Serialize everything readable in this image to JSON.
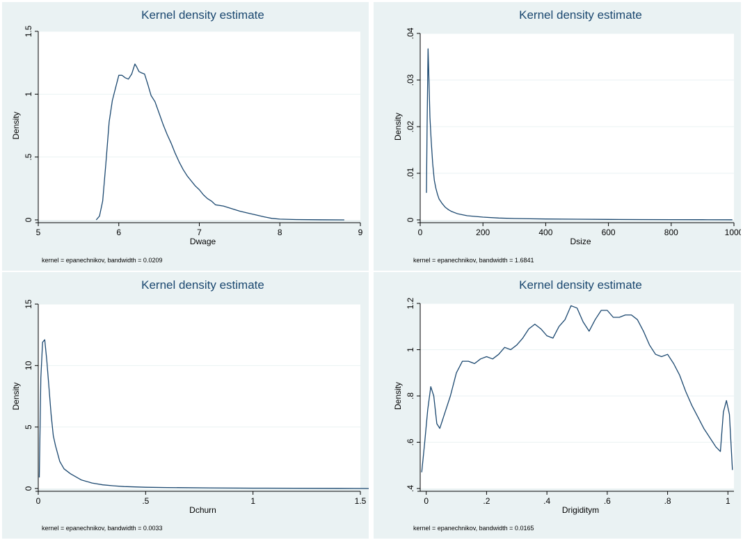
{
  "colors": {
    "panel_bg": "#eaf2f3",
    "plot_bg": "#ffffff",
    "line": "#1a476f",
    "title": "#1a476f",
    "grid": "#eaf2f3"
  },
  "chart_data": [
    {
      "type": "line",
      "title": "Kernel density estimate",
      "xlabel": "Dwage",
      "ylabel": "Density",
      "note": "kernel = epanechnikov, bandwidth = 0.0209",
      "xlim": [
        5,
        9
      ],
      "ylim": [
        0,
        1.5
      ],
      "xticks": [
        5,
        6,
        7,
        8,
        9
      ],
      "xtick_labels": [
        "5",
        "6",
        "7",
        "8",
        "9"
      ],
      "yticks": [
        0,
        0.5,
        1,
        1.5
      ],
      "ytick_labels": [
        "0",
        ".5",
        "1",
        "1.5"
      ],
      "grid": true,
      "x": [
        5.72,
        5.76,
        5.8,
        5.84,
        5.88,
        5.92,
        5.96,
        6.0,
        6.04,
        6.08,
        6.12,
        6.16,
        6.2,
        6.22,
        6.25,
        6.28,
        6.32,
        6.36,
        6.4,
        6.45,
        6.5,
        6.55,
        6.6,
        6.65,
        6.7,
        6.75,
        6.8,
        6.85,
        6.9,
        6.95,
        7.0,
        7.05,
        7.1,
        7.15,
        7.2,
        7.3,
        7.4,
        7.5,
        7.6,
        7.7,
        7.8,
        7.9,
        8.0,
        8.2,
        8.5,
        8.8
      ],
      "y": [
        0.0,
        0.03,
        0.15,
        0.45,
        0.78,
        0.95,
        1.05,
        1.15,
        1.15,
        1.13,
        1.12,
        1.16,
        1.24,
        1.22,
        1.18,
        1.17,
        1.16,
        1.08,
        0.99,
        0.94,
        0.85,
        0.76,
        0.68,
        0.61,
        0.53,
        0.46,
        0.4,
        0.35,
        0.31,
        0.27,
        0.24,
        0.2,
        0.17,
        0.15,
        0.12,
        0.11,
        0.09,
        0.07,
        0.055,
        0.04,
        0.025,
        0.012,
        0.006,
        0.003,
        0.001,
        0.0
      ]
    },
    {
      "type": "line",
      "title": "Kernel density estimate",
      "xlabel": "Dsize",
      "ylabel": "Density",
      "note": "kernel = epanechnikov, bandwidth = 1.6841",
      "xlim": [
        0,
        1000
      ],
      "ylim": [
        0,
        0.04
      ],
      "xticks": [
        0,
        200,
        400,
        600,
        800,
        1000
      ],
      "xtick_labels": [
        "0",
        "200",
        "400",
        "600",
        "800",
        "1000"
      ],
      "yticks": [
        0,
        0.01,
        0.02,
        0.03,
        0.04
      ],
      "ytick_labels": [
        "0",
        ".01",
        ".02",
        ".03",
        ".04"
      ],
      "grid": true,
      "x": [
        20,
        22,
        25,
        28,
        31,
        35,
        40,
        45,
        50,
        55,
        60,
        70,
        80,
        90,
        100,
        120,
        150,
        200,
        250,
        300,
        400,
        500,
        600,
        700,
        800,
        900,
        995
      ],
      "y": [
        0.0058,
        0.02,
        0.0367,
        0.03,
        0.022,
        0.017,
        0.012,
        0.0085,
        0.0068,
        0.0055,
        0.0045,
        0.0035,
        0.0027,
        0.0022,
        0.0018,
        0.0013,
        0.0009,
        0.0006,
        0.0004,
        0.0003,
        0.0002,
        0.00015,
        0.0001,
        8e-05,
        6e-05,
        4e-05,
        3e-05
      ]
    },
    {
      "type": "line",
      "title": "Kernel density estimate",
      "xlabel": "Dchurn",
      "ylabel": "Density",
      "note": "kernel = epanechnikov, bandwidth = 0.0033",
      "xlim": [
        0,
        1.5
      ],
      "ylim": [
        0,
        15
      ],
      "xticks": [
        0,
        0.5,
        1,
        1.5
      ],
      "xtick_labels": [
        "0",
        ".5",
        "1",
        "1.5"
      ],
      "yticks": [
        0,
        5,
        10,
        15
      ],
      "ytick_labels": [
        "0",
        "5",
        "10",
        "15"
      ],
      "grid": true,
      "x": [
        0.005,
        0.012,
        0.02,
        0.03,
        0.04,
        0.05,
        0.06,
        0.07,
        0.08,
        0.1,
        0.12,
        0.15,
        0.2,
        0.25,
        0.3,
        0.35,
        0.4,
        0.5,
        0.6,
        0.8,
        1.0,
        1.2,
        1.4,
        1.55
      ],
      "y": [
        0.9,
        9.0,
        11.9,
        12.1,
        10.4,
        8.2,
        6.0,
        4.3,
        3.5,
        2.2,
        1.6,
        1.2,
        0.7,
        0.45,
        0.3,
        0.22,
        0.16,
        0.1,
        0.08,
        0.05,
        0.03,
        0.02,
        0.01,
        0.0
      ]
    },
    {
      "type": "line",
      "title": "Kernel density estimate",
      "xlabel": "Drigiditym",
      "ylabel": "Density",
      "note": "kernel = epanechnikov, bandwidth = 0.0165",
      "xlim": [
        -0.02,
        1.02
      ],
      "ylim": [
        0.4,
        1.2
      ],
      "xticks": [
        0,
        0.2,
        0.4,
        0.6,
        0.8,
        1
      ],
      "xtick_labels": [
        "0",
        ".2",
        ".4",
        ".6",
        ".8",
        "1"
      ],
      "yticks": [
        0.4,
        0.6,
        0.8,
        1,
        1.2
      ],
      "ytick_labels": [
        ".4",
        ".6",
        ".8",
        "1",
        "1.2"
      ],
      "grid": true,
      "x": [
        -0.015,
        -0.005,
        0.005,
        0.015,
        0.025,
        0.035,
        0.045,
        0.06,
        0.08,
        0.1,
        0.12,
        0.14,
        0.16,
        0.18,
        0.2,
        0.22,
        0.24,
        0.26,
        0.28,
        0.3,
        0.32,
        0.34,
        0.36,
        0.38,
        0.4,
        0.42,
        0.44,
        0.46,
        0.48,
        0.5,
        0.52,
        0.54,
        0.56,
        0.58,
        0.6,
        0.62,
        0.64,
        0.66,
        0.68,
        0.7,
        0.72,
        0.74,
        0.76,
        0.78,
        0.8,
        0.82,
        0.84,
        0.86,
        0.88,
        0.9,
        0.92,
        0.94,
        0.96,
        0.975,
        0.985,
        0.995,
        1.005,
        1.015
      ],
      "y": [
        0.47,
        0.6,
        0.74,
        0.84,
        0.8,
        0.68,
        0.66,
        0.72,
        0.8,
        0.9,
        0.95,
        0.95,
        0.94,
        0.96,
        0.97,
        0.96,
        0.98,
        1.01,
        1.0,
        1.02,
        1.05,
        1.09,
        1.11,
        1.09,
        1.06,
        1.05,
        1.1,
        1.13,
        1.19,
        1.18,
        1.12,
        1.08,
        1.13,
        1.17,
        1.17,
        1.14,
        1.14,
        1.15,
        1.15,
        1.13,
        1.08,
        1.02,
        0.98,
        0.97,
        0.98,
        0.94,
        0.89,
        0.82,
        0.76,
        0.71,
        0.66,
        0.62,
        0.58,
        0.56,
        0.73,
        0.78,
        0.72,
        0.48
      ]
    }
  ]
}
